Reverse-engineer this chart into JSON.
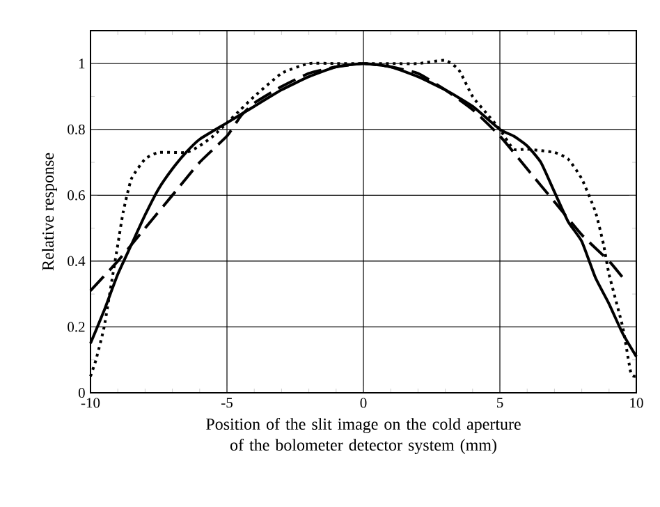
{
  "chart_data": {
    "type": "line",
    "xlabel": "Position of the slit image on the cold aperture of the bolometer detector system (mm)",
    "ylabel": "Relative response",
    "xlim": [
      -10,
      10
    ],
    "xticks": [
      -10,
      -5,
      0,
      5,
      10
    ],
    "ylim": [
      0,
      1.1
    ],
    "yticks": [
      0,
      0.2,
      0.4,
      0.6,
      0.8,
      1
    ],
    "grid": true,
    "series": [
      {
        "color": "#000000",
        "line_style": "solid",
        "x": [
          -10,
          -9.5,
          -9,
          -8.5,
          -8,
          -7.5,
          -7,
          -6.5,
          -6,
          -5,
          -4,
          -3,
          -2,
          -1,
          0,
          1,
          2,
          3,
          4,
          5,
          5.5,
          6,
          6.5,
          7,
          7.5,
          8,
          8.5,
          9,
          9.5,
          10
        ],
        "values": [
          0.15,
          0.25,
          0.36,
          0.45,
          0.54,
          0.62,
          0.68,
          0.73,
          0.77,
          0.82,
          0.87,
          0.92,
          0.96,
          0.99,
          1,
          0.99,
          0.96,
          0.92,
          0.87,
          0.8,
          0.78,
          0.75,
          0.7,
          0.61,
          0.52,
          0.46,
          0.35,
          0.27,
          0.18,
          0.11
        ]
      },
      {
        "color": "#000000",
        "line_style": "dotted",
        "x": [
          -10,
          -9.8,
          -9.5,
          -9.2,
          -9,
          -8.8,
          -8.5,
          -8,
          -7.5,
          -6.5,
          -6,
          -5.5,
          -5,
          -4.5,
          -4,
          -3,
          -2,
          -1,
          0,
          1,
          2,
          3,
          3.5,
          4,
          4.5,
          5,
          5.5,
          6,
          7,
          7.5,
          8,
          8.5,
          8.8,
          9,
          9.5,
          9.8,
          10
        ],
        "values": [
          0.05,
          0.1,
          0.2,
          0.35,
          0.45,
          0.55,
          0.65,
          0.71,
          0.73,
          0.73,
          0.75,
          0.78,
          0.82,
          0.86,
          0.9,
          0.97,
          1,
          1,
          1,
          1,
          1,
          1.01,
          0.98,
          0.9,
          0.85,
          0.8,
          0.74,
          0.74,
          0.73,
          0.71,
          0.65,
          0.55,
          0.45,
          0.36,
          0.2,
          0.06,
          0.05
        ]
      },
      {
        "color": "#000000",
        "line_style": "dashed",
        "x": [
          -10,
          -9,
          -8,
          -7,
          -6,
          -5,
          -4.5,
          -4,
          -3,
          -2,
          -1,
          0,
          1,
          2,
          3,
          4,
          5,
          6,
          7,
          8,
          9,
          9.5
        ],
        "values": [
          0.31,
          0.4,
          0.5,
          0.6,
          0.7,
          0.78,
          0.84,
          0.88,
          0.93,
          0.97,
          0.99,
          1,
          0.99,
          0.97,
          0.92,
          0.86,
          0.78,
          0.68,
          0.58,
          0.48,
          0.4,
          0.35
        ]
      }
    ]
  }
}
